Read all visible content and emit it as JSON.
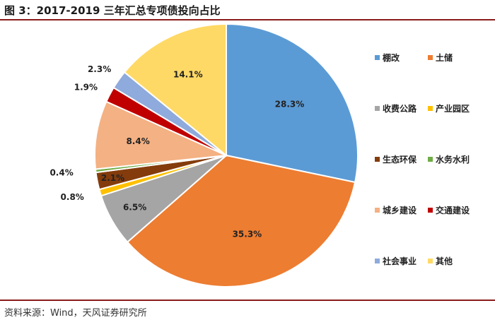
{
  "figure": {
    "title": "图 3：2017-2019 三年汇总专项债投向占比",
    "source": "资料来源：Wind，天风证券研究所"
  },
  "chart_data": {
    "type": "pie",
    "unit": "%",
    "categories": [
      "棚改",
      "土储",
      "收费公路",
      "产业园区",
      "生态环保",
      "水务水利",
      "城乡建设",
      "交通建设",
      "社会事业",
      "其他"
    ],
    "values": [
      28.3,
      35.3,
      6.5,
      0.8,
      2.1,
      0.4,
      8.4,
      1.9,
      2.3,
      14.1
    ],
    "labels": [
      "28.3%",
      "35.3%",
      "6.5%",
      "0.8%",
      "2.1%",
      "0.4%",
      "8.4%",
      "1.9%",
      "2.3%",
      "14.1%"
    ],
    "colors": [
      "#5b9bd5",
      "#ed7d31",
      "#a5a5a5",
      "#ffc000",
      "#843c0c",
      "#70ad47",
      "#f4b183",
      "#c00000",
      "#8faadc",
      "#ffd966"
    ],
    "legend_position": "right",
    "start_angle": "12 o'clock",
    "direction": "clockwise"
  }
}
